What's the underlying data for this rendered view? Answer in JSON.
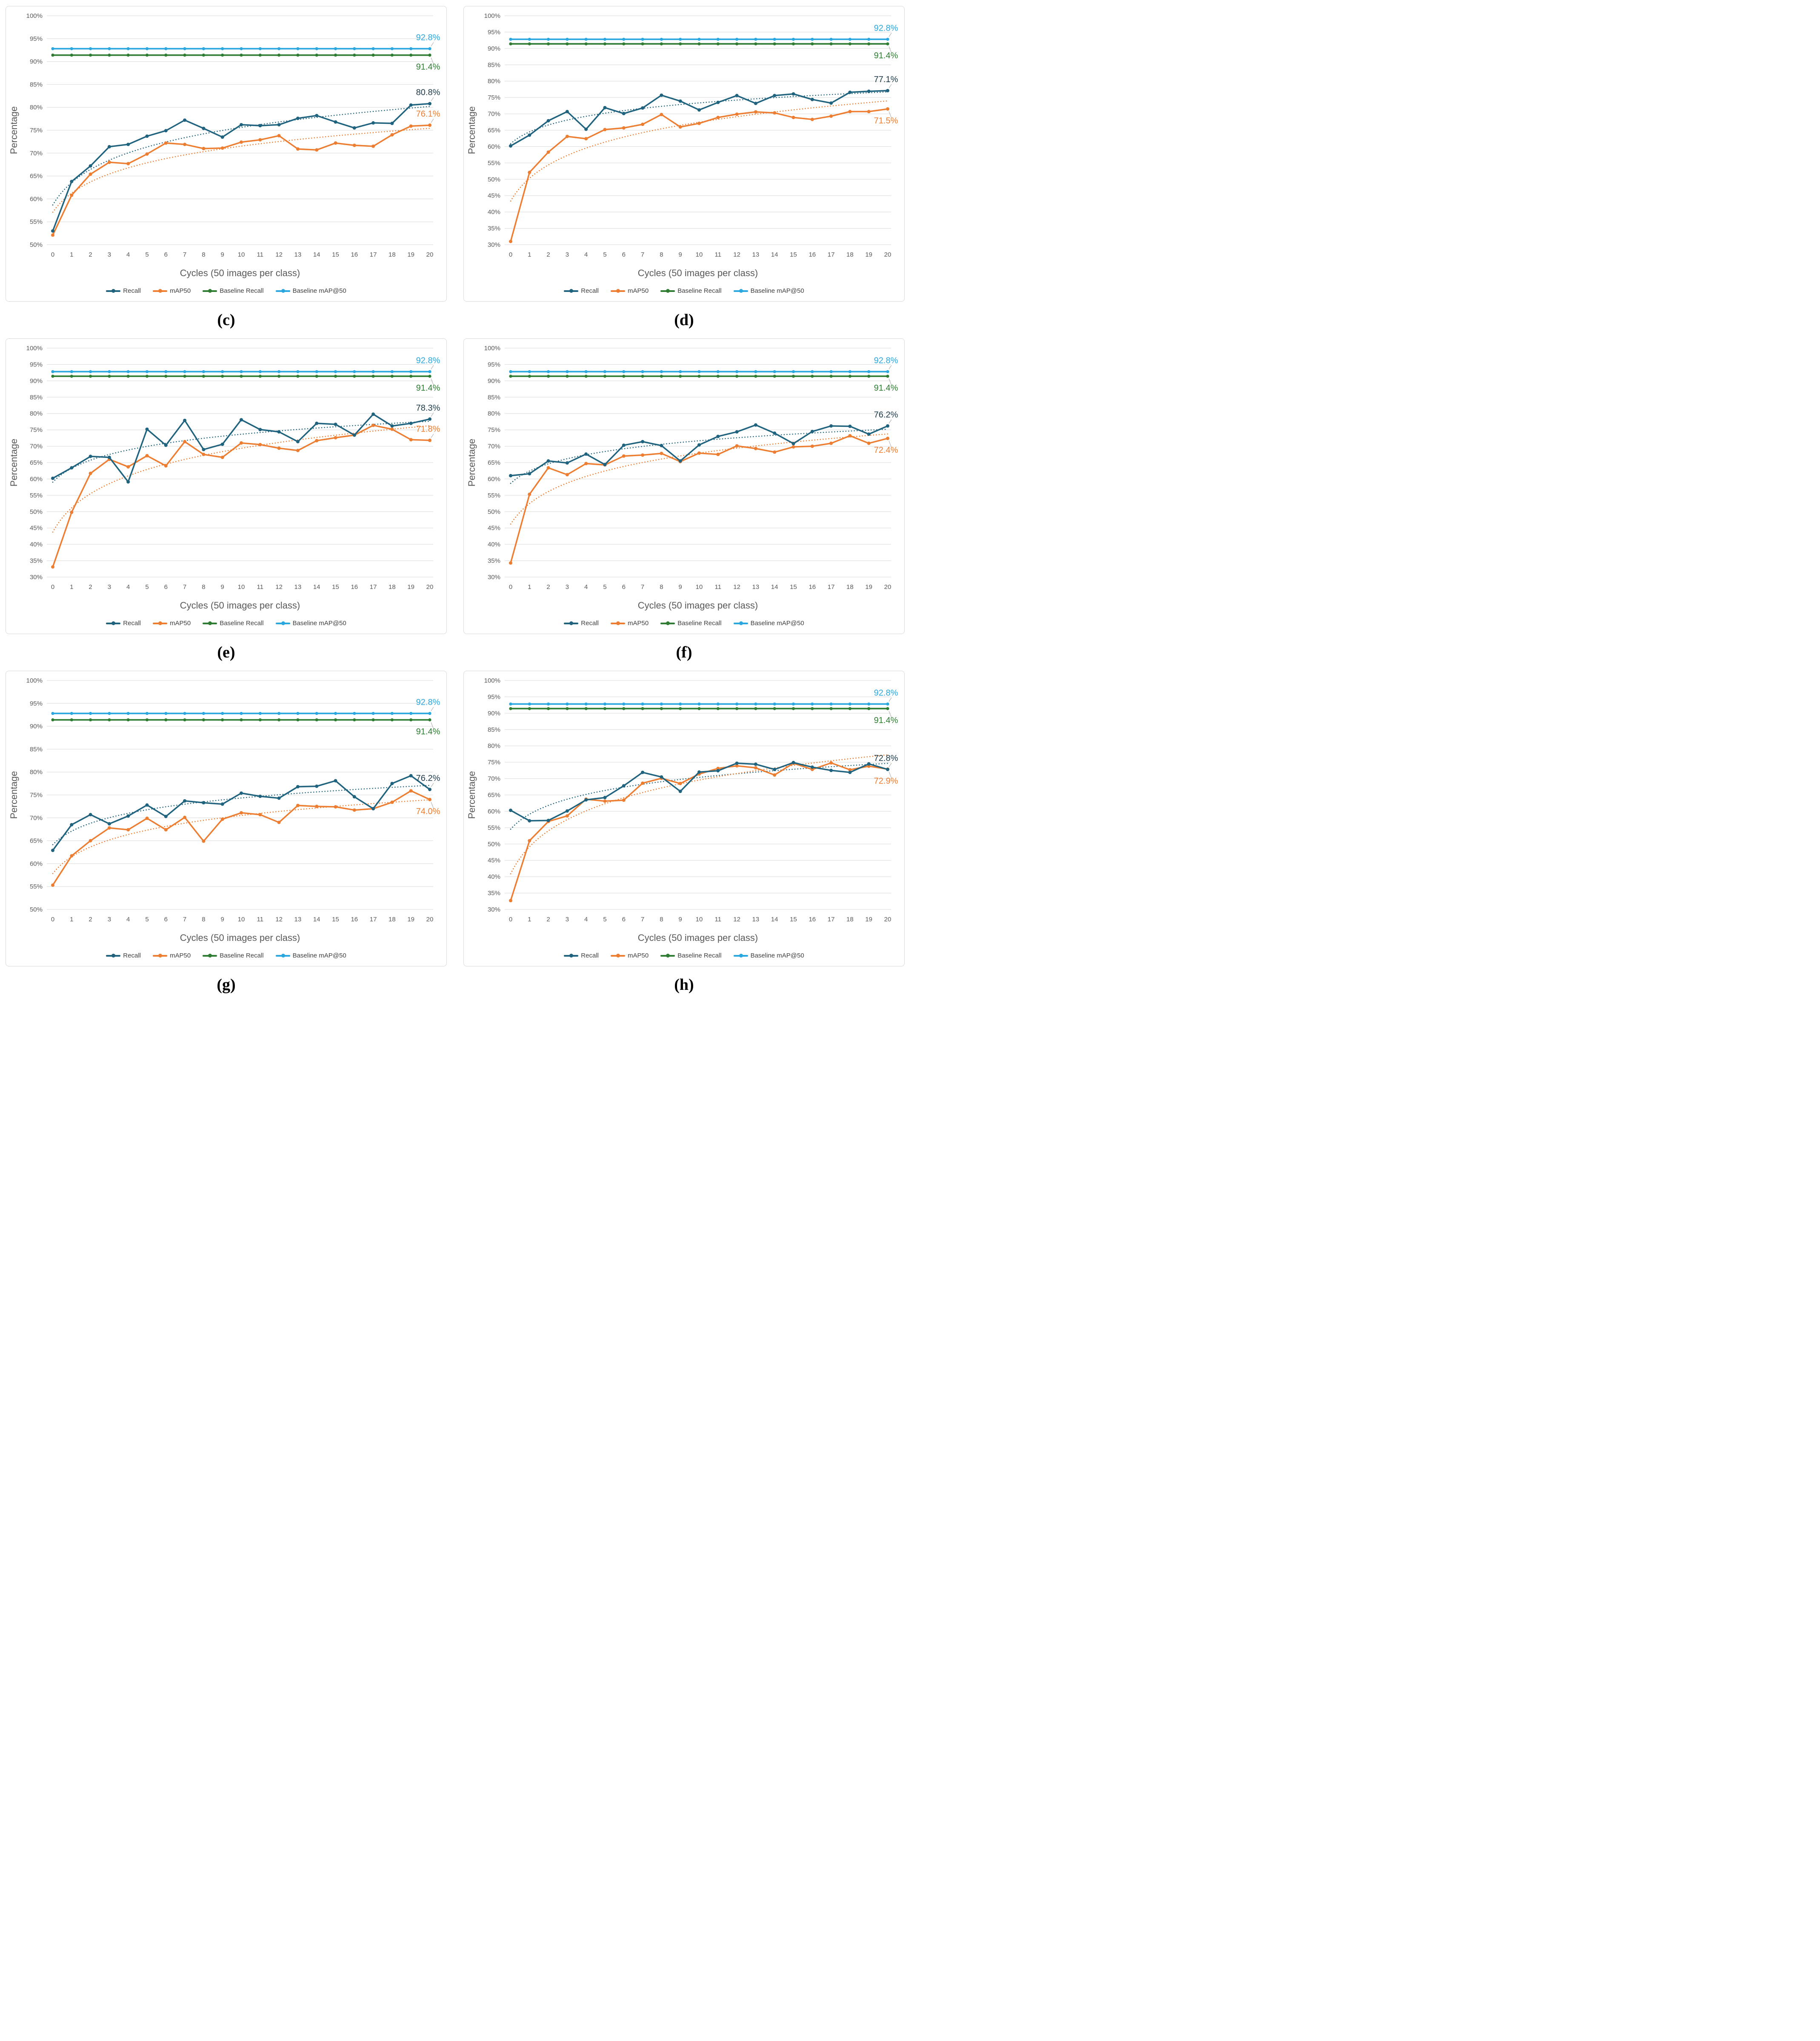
{
  "axis": {
    "x_title": "Cycles (50 images per class)",
    "y_title": "Percentage",
    "x_ticks": [
      0,
      1,
      2,
      3,
      4,
      5,
      6,
      7,
      8,
      9,
      10,
      11,
      12,
      13,
      14,
      15,
      16,
      17,
      18,
      19,
      20
    ]
  },
  "legend": [
    {
      "label": "Recall",
      "color": "#1F637F"
    },
    {
      "label": "mAP50",
      "color": "#ED7D31"
    },
    {
      "label": "Baseline Recall",
      "color": "#2E7D32"
    },
    {
      "label": "Baseline mAP@50",
      "color": "#2BA7E0"
    }
  ],
  "colors": {
    "recall": "#1F637F",
    "map50": "#ED7D31",
    "baseline_recall": "#2E7D32",
    "baseline_map50": "#2BA7E0",
    "label_recall": "#1E3A49",
    "grid": "#D9D9D9",
    "tick_text": "#595959",
    "axis_title_text": "#595959",
    "leader": "#A6A6A6"
  },
  "chart_data": [
    {
      "type": "line",
      "id": "c",
      "caption": "(c)",
      "xlabel": "Cycles (50 images per class)",
      "ylabel": "Percentage",
      "ylim": [
        50,
        100
      ],
      "ytick_step": 5,
      "grid": true,
      "legend_position": "bottom",
      "categories": [
        0,
        1,
        2,
        3,
        4,
        5,
        6,
        7,
        8,
        9,
        10,
        11,
        12,
        13,
        14,
        15,
        16,
        17,
        18,
        19,
        20
      ],
      "series": [
        {
          "name": "Recall",
          "role": "recall",
          "trendline": true,
          "final_label": "80.8%",
          "label_pos": "above",
          "values": [
            53.0,
            63.8,
            67.2,
            71.4,
            71.9,
            73.7,
            74.9,
            77.2,
            75.4,
            73.5,
            76.2,
            76.0,
            76.2,
            77.6,
            78.2,
            76.8,
            75.5,
            76.6,
            76.5,
            80.5,
            80.8
          ]
        },
        {
          "name": "mAP50",
          "role": "map50",
          "trendline": true,
          "final_label": "76.1%",
          "label_pos": "above",
          "values": [
            52.1,
            60.8,
            65.4,
            68.0,
            67.7,
            69.8,
            72.2,
            71.9,
            71.0,
            71.1,
            72.4,
            72.9,
            73.8,
            70.9,
            70.7,
            72.2,
            71.7,
            71.5,
            74.0,
            75.9,
            76.1
          ]
        },
        {
          "name": "Baseline Recall",
          "role": "baseline_recall",
          "constant": 91.4,
          "final_label": "91.4%",
          "label_pos": "below"
        },
        {
          "name": "Baseline mAP@50",
          "role": "baseline_map50",
          "constant": 92.8,
          "final_label": "92.8%",
          "label_pos": "above"
        }
      ]
    },
    {
      "type": "line",
      "id": "d",
      "caption": "(d)",
      "xlabel": "Cycles (50 images per class)",
      "ylabel": "Percentage",
      "ylim": [
        30,
        100
      ],
      "ytick_step": 5,
      "grid": true,
      "legend_position": "bottom",
      "categories": [
        0,
        1,
        2,
        3,
        4,
        5,
        6,
        7,
        8,
        9,
        10,
        11,
        12,
        13,
        14,
        15,
        16,
        17,
        18,
        19,
        20
      ],
      "series": [
        {
          "name": "Recall",
          "role": "recall",
          "trendline": true,
          "final_label": "77.1%",
          "label_pos": "above",
          "values": [
            60.2,
            63.5,
            67.9,
            70.7,
            65.3,
            71.9,
            70.1,
            71.8,
            75.7,
            73.9,
            71.2,
            73.5,
            75.6,
            73.2,
            75.6,
            76.1,
            74.4,
            73.3,
            76.6,
            76.9,
            77.1
          ]
        },
        {
          "name": "mAP50",
          "role": "map50",
          "trendline": true,
          "final_label": "71.5%",
          "label_pos": "below",
          "values": [
            31.0,
            52.1,
            58.3,
            63.1,
            62.4,
            65.2,
            65.7,
            66.8,
            69.8,
            66.0,
            67.1,
            68.9,
            69.9,
            70.6,
            70.3,
            68.9,
            68.3,
            69.3,
            70.7,
            70.7,
            71.5
          ]
        },
        {
          "name": "Baseline Recall",
          "role": "baseline_recall",
          "constant": 91.4,
          "final_label": "91.4%",
          "label_pos": "below"
        },
        {
          "name": "Baseline mAP@50",
          "role": "baseline_map50",
          "constant": 92.8,
          "final_label": "92.8%",
          "label_pos": "above"
        }
      ]
    },
    {
      "type": "line",
      "id": "e",
      "caption": "(e)",
      "xlabel": "Cycles (50 images per class)",
      "ylabel": "Percentage",
      "ylim": [
        30,
        100
      ],
      "ytick_step": 5,
      "grid": true,
      "legend_position": "bottom",
      "categories": [
        0,
        1,
        2,
        3,
        4,
        5,
        6,
        7,
        8,
        9,
        10,
        11,
        12,
        13,
        14,
        15,
        16,
        17,
        18,
        19,
        20
      ],
      "series": [
        {
          "name": "Recall",
          "role": "recall",
          "trendline": true,
          "final_label": "78.3%",
          "label_pos": "above",
          "values": [
            60.2,
            63.4,
            66.9,
            66.6,
            59.1,
            75.2,
            70.3,
            77.9,
            69.0,
            70.6,
            78.1,
            75.1,
            74.4,
            71.4,
            77.0,
            76.7,
            73.4,
            79.8,
            76.2,
            77.0,
            78.3
          ]
        },
        {
          "name": "mAP50",
          "role": "map50",
          "trendline": true,
          "final_label": "71.8%",
          "label_pos": "above",
          "values": [
            33.1,
            49.8,
            61.7,
            66.0,
            63.7,
            67.1,
            64.0,
            71.4,
            67.5,
            66.6,
            71.0,
            70.5,
            69.4,
            68.7,
            71.7,
            72.6,
            73.4,
            76.4,
            75.2,
            72.0,
            71.8
          ]
        },
        {
          "name": "Baseline Recall",
          "role": "baseline_recall",
          "constant": 91.4,
          "final_label": "91.4%",
          "label_pos": "below"
        },
        {
          "name": "Baseline mAP@50",
          "role": "baseline_map50",
          "constant": 92.8,
          "final_label": "92.8%",
          "label_pos": "above"
        }
      ]
    },
    {
      "type": "line",
      "id": "f",
      "caption": "(f)",
      "xlabel": "Cycles (50 images per class)",
      "ylabel": "Percentage",
      "ylim": [
        30,
        100
      ],
      "ytick_step": 5,
      "grid": true,
      "legend_position": "bottom",
      "categories": [
        0,
        1,
        2,
        3,
        4,
        5,
        6,
        7,
        8,
        9,
        10,
        11,
        12,
        13,
        14,
        15,
        16,
        17,
        18,
        19,
        20
      ],
      "series": [
        {
          "name": "Recall",
          "role": "recall",
          "trendline": true,
          "final_label": "76.2%",
          "label_pos": "above",
          "values": [
            61.0,
            61.6,
            65.5,
            64.9,
            67.6,
            64.4,
            70.3,
            71.4,
            70.2,
            65.5,
            70.4,
            73.0,
            74.4,
            76.5,
            74.0,
            70.8,
            74.5,
            76.2,
            76.1,
            73.7,
            76.2
          ]
        },
        {
          "name": "mAP50",
          "role": "map50",
          "trendline": true,
          "final_label": "72.4%",
          "label_pos": "below",
          "values": [
            34.3,
            55.3,
            63.4,
            61.3,
            64.7,
            64.3,
            67.0,
            67.3,
            67.8,
            65.3,
            67.9,
            67.5,
            70.1,
            69.3,
            68.2,
            69.8,
            70.0,
            70.9,
            73.2,
            70.9,
            72.4
          ]
        },
        {
          "name": "Baseline Recall",
          "role": "baseline_recall",
          "constant": 91.4,
          "final_label": "91.4%",
          "label_pos": "below"
        },
        {
          "name": "Baseline mAP@50",
          "role": "baseline_map50",
          "constant": 92.8,
          "final_label": "92.8%",
          "label_pos": "above"
        }
      ]
    },
    {
      "type": "line",
      "id": "g",
      "caption": "(g)",
      "xlabel": "Cycles (50 images per class)",
      "ylabel": "Percentage",
      "ylim": [
        50,
        100
      ],
      "ytick_step": 5,
      "grid": true,
      "legend_position": "bottom",
      "categories": [
        0,
        1,
        2,
        3,
        4,
        5,
        6,
        7,
        8,
        9,
        10,
        11,
        12,
        13,
        14,
        15,
        16,
        17,
        18,
        19,
        20
      ],
      "series": [
        {
          "name": "Recall",
          "role": "recall",
          "trendline": true,
          "final_label": "76.2%",
          "label_pos": "above",
          "values": [
            62.9,
            68.5,
            70.7,
            68.7,
            70.4,
            72.8,
            70.3,
            73.7,
            73.3,
            73.0,
            75.4,
            74.7,
            74.3,
            76.8,
            76.9,
            78.1,
            74.6,
            72.0,
            77.5,
            79.2,
            76.2
          ]
        },
        {
          "name": "mAP50",
          "role": "map50",
          "trendline": true,
          "final_label": "74.0%",
          "label_pos": "below",
          "values": [
            55.3,
            61.7,
            65.0,
            67.8,
            67.4,
            69.9,
            67.4,
            70.1,
            64.9,
            69.7,
            71.1,
            70.7,
            69.0,
            72.7,
            72.5,
            72.4,
            71.7,
            72.0,
            73.4,
            75.9,
            74.0
          ]
        },
        {
          "name": "Baseline Recall",
          "role": "baseline_recall",
          "constant": 91.4,
          "final_label": "91.4%",
          "label_pos": "below"
        },
        {
          "name": "Baseline mAP@50",
          "role": "baseline_map50",
          "constant": 92.8,
          "final_label": "92.8%",
          "label_pos": "above"
        }
      ]
    },
    {
      "type": "line",
      "id": "h",
      "caption": "(h)",
      "xlabel": "Cycles (50 images per class)",
      "ylabel": "Percentage",
      "ylim": [
        30,
        100
      ],
      "ytick_step": 5,
      "grid": true,
      "legend_position": "bottom",
      "categories": [
        0,
        1,
        2,
        3,
        4,
        5,
        6,
        7,
        8,
        9,
        10,
        11,
        12,
        13,
        14,
        15,
        16,
        17,
        18,
        19,
        20
      ],
      "series": [
        {
          "name": "Recall",
          "role": "recall",
          "trendline": true,
          "final_label": "72.8%",
          "label_pos": "above",
          "values": [
            60.3,
            57.1,
            57.2,
            60.1,
            63.5,
            64.2,
            67.8,
            71.9,
            70.5,
            66.1,
            72.0,
            72.4,
            74.7,
            74.4,
            72.8,
            74.9,
            73.5,
            72.5,
            71.9,
            74.5,
            72.8
          ]
        },
        {
          "name": "mAP50",
          "role": "map50",
          "trendline": true,
          "final_label": "72.9%",
          "label_pos": "below",
          "values": [
            32.7,
            51.0,
            56.9,
            58.6,
            63.7,
            63.1,
            63.4,
            68.6,
            70.1,
            68.5,
            71.4,
            73.1,
            73.9,
            73.3,
            71.1,
            74.7,
            72.8,
            74.8,
            72.7,
            73.8,
            72.9
          ]
        },
        {
          "name": "Baseline Recall",
          "role": "baseline_recall",
          "constant": 91.4,
          "final_label": "91.4%",
          "label_pos": "below"
        },
        {
          "name": "Baseline mAP@50",
          "role": "baseline_map50",
          "constant": 92.8,
          "final_label": "92.8%",
          "label_pos": "above"
        }
      ]
    }
  ]
}
